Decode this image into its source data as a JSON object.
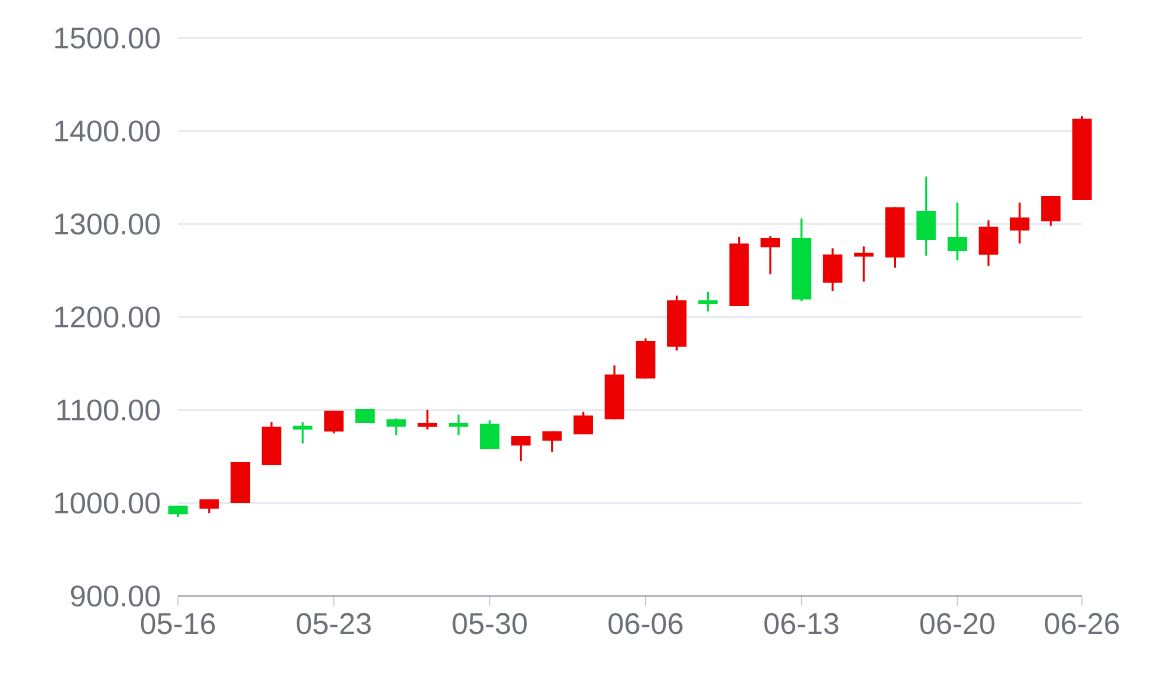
{
  "chart_data": {
    "type": "candlestick",
    "categories": [
      "05-16",
      null,
      null,
      null,
      null,
      "05-23",
      null,
      null,
      null,
      null,
      "05-30",
      null,
      null,
      null,
      null,
      "06-06",
      null,
      null,
      null,
      null,
      "06-13",
      null,
      null,
      null,
      null,
      "06-20",
      null,
      null,
      null,
      "06-26"
    ],
    "ohlc": [
      [
        996,
        997,
        985,
        989
      ],
      [
        995,
        1003,
        989,
        1003
      ],
      [
        1001,
        1044,
        1000,
        1043
      ],
      [
        1042,
        1087,
        1041,
        1081
      ],
      [
        1082,
        1087,
        1064,
        1080
      ],
      [
        1078,
        1099,
        1075,
        1098
      ],
      [
        1100,
        1100,
        1086,
        1087
      ],
      [
        1089,
        1091,
        1073,
        1083
      ],
      [
        1083,
        1100,
        1079,
        1085
      ],
      [
        1085,
        1095,
        1073,
        1083
      ],
      [
        1084,
        1089,
        1058,
        1059
      ],
      [
        1063,
        1072,
        1045,
        1071
      ],
      [
        1068,
        1077,
        1055,
        1076
      ],
      [
        1075,
        1098,
        1074,
        1093
      ],
      [
        1091,
        1148,
        1090,
        1137
      ],
      [
        1135,
        1177,
        1134,
        1173
      ],
      [
        1169,
        1223,
        1164,
        1217
      ],
      [
        1217,
        1227,
        1206,
        1215
      ],
      [
        1213,
        1286,
        1212,
        1278
      ],
      [
        1276,
        1287,
        1246,
        1284
      ],
      [
        1284,
        1306,
        1217,
        1220
      ],
      [
        1238,
        1274,
        1228,
        1266
      ],
      [
        1266,
        1276,
        1238,
        1268
      ],
      [
        1265,
        1318,
        1253,
        1317
      ],
      [
        1313,
        1351,
        1266,
        1284
      ],
      [
        1285,
        1323,
        1261,
        1272
      ],
      [
        1268,
        1304,
        1255,
        1296
      ],
      [
        1294,
        1323,
        1279,
        1306
      ],
      [
        1304,
        1330,
        1298,
        1329
      ],
      [
        1327,
        1416,
        1326,
        1412
      ]
    ],
    "colors": [
      "#00da3c",
      "#ec0000",
      "#ec0000",
      "#ec0000",
      "#00da3c",
      "#ec0000",
      "#00da3c",
      "#00da3c",
      "#ec0000",
      "#00da3c",
      "#00da3c",
      "#ec0000",
      "#ec0000",
      "#ec0000",
      "#ec0000",
      "#ec0000",
      "#ec0000",
      "#00da3c",
      "#ec0000",
      "#ec0000",
      "#00da3c",
      "#ec0000",
      "#ec0000",
      "#ec0000",
      "#00da3c",
      "#00da3c",
      "#ec0000",
      "#ec0000",
      "#ec0000",
      "#ec0000"
    ],
    "ylim": [
      900,
      1500
    ],
    "yticks": [
      {
        "value": 900,
        "label": "900.00"
      },
      {
        "value": 1000,
        "label": "1000.00"
      },
      {
        "value": 1100,
        "label": "1100.00"
      },
      {
        "value": 1200,
        "label": "1200.00"
      },
      {
        "value": 1300,
        "label": "1300.00"
      },
      {
        "value": 1400,
        "label": "1400.00"
      },
      {
        "value": 1500,
        "label": "1500.00"
      }
    ],
    "grid": "y"
  }
}
